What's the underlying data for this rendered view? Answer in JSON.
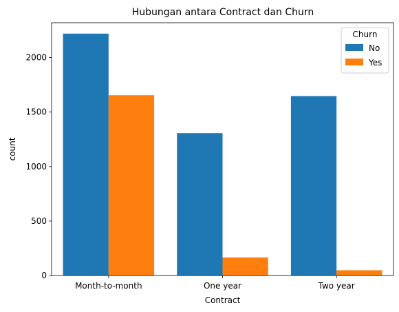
{
  "chart_data": {
    "type": "bar",
    "title": "Hubungan antara Contract dan Churn",
    "xlabel": "Contract",
    "ylabel": "count",
    "categories": [
      "Month-to-month",
      "One year",
      "Two year"
    ],
    "series": [
      {
        "name": "No",
        "color": "#1f77b4",
        "values": [
          2220,
          1307,
          1647
        ]
      },
      {
        "name": "Yes",
        "color": "#ff7f0e",
        "values": [
          1655,
          166,
          48
        ]
      }
    ],
    "ylim": [
      0,
      2320
    ],
    "yticks": [
      0,
      500,
      1000,
      1500,
      2000
    ],
    "legend": {
      "title": "Churn",
      "placement": "top-right"
    },
    "grid": false
  }
}
